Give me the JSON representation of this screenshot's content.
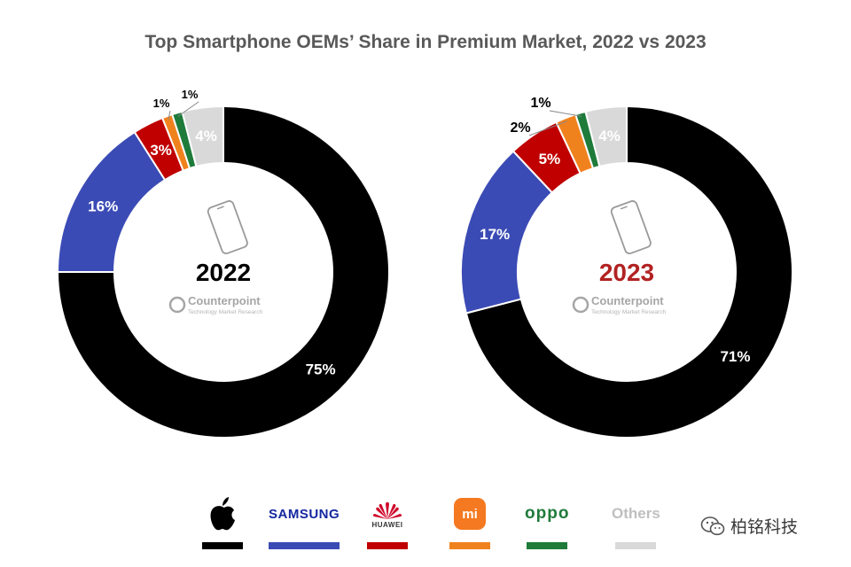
{
  "title": "Top Smartphone OEMs’ Share in Premium Market, 2022 vs 2023",
  "colors": {
    "apple": "#000000",
    "samsung": "#3b4bb5",
    "huawei": "#c00000",
    "xiaomi": "#f0821e",
    "oppo": "#1e7b3a",
    "others": "#d9d9d9",
    "year_2022": "#000000",
    "year_2023": "#b22222"
  },
  "chart_data": [
    {
      "type": "pie",
      "style": "donut",
      "center_label": "2022",
      "brand_text": "Counterpoint",
      "brand_subtext": "Technology Market Research",
      "slices": [
        {
          "name": "Apple",
          "value": 75,
          "label": "75%",
          "color": "#000000",
          "label_color": "#ffffff"
        },
        {
          "name": "Samsung",
          "value": 16,
          "label": "16%",
          "color": "#3b4bb5",
          "label_color": "#ffffff"
        },
        {
          "name": "Huawei",
          "value": 3,
          "label": "3%",
          "color": "#c00000",
          "label_color": "#ffffff"
        },
        {
          "name": "Xiaomi",
          "value": 1,
          "label": "1%",
          "color": "#f0821e",
          "label_color": "#000000",
          "outside": true
        },
        {
          "name": "OPPO",
          "value": 1,
          "label": "1%",
          "color": "#1e7b3a",
          "label_color": "#000000",
          "outside": true
        },
        {
          "name": "Others",
          "value": 4,
          "label": "4%",
          "color": "#d9d9d9",
          "label_color": "#ffffff"
        }
      ]
    },
    {
      "type": "pie",
      "style": "donut",
      "center_label": "2023",
      "brand_text": "Counterpoint",
      "brand_subtext": "Technology Market Research",
      "slices": [
        {
          "name": "Apple",
          "value": 71,
          "label": "71%",
          "color": "#000000",
          "label_color": "#ffffff"
        },
        {
          "name": "Samsung",
          "value": 17,
          "label": "17%",
          "color": "#3b4bb5",
          "label_color": "#ffffff"
        },
        {
          "name": "Huawei",
          "value": 5,
          "label": "5%",
          "color": "#c00000",
          "label_color": "#ffffff"
        },
        {
          "name": "Xiaomi",
          "value": 2,
          "label": "2%",
          "color": "#f0821e",
          "label_color": "#000000",
          "outside": true
        },
        {
          "name": "OPPO",
          "value": 1,
          "label": "1%",
          "color": "#1e7b3a",
          "label_color": "#000000",
          "outside": true
        },
        {
          "name": "Others",
          "value": 4,
          "label": "4%",
          "color": "#d9d9d9",
          "label_color": "#ffffff"
        }
      ]
    }
  ],
  "legend": {
    "samsung_text": "SAMSUNG",
    "huawei_text": "HUAWEI",
    "xiaomi_text": "mi",
    "oppo_text": "oppo",
    "others_text": "Others",
    "icons": [
      "apple-logo",
      "samsung-logo",
      "huawei-logo",
      "xiaomi-logo",
      "oppo-logo",
      "others-label"
    ]
  },
  "watermark": {
    "text": "柏铭科技",
    "icon": "wechat-icon"
  }
}
